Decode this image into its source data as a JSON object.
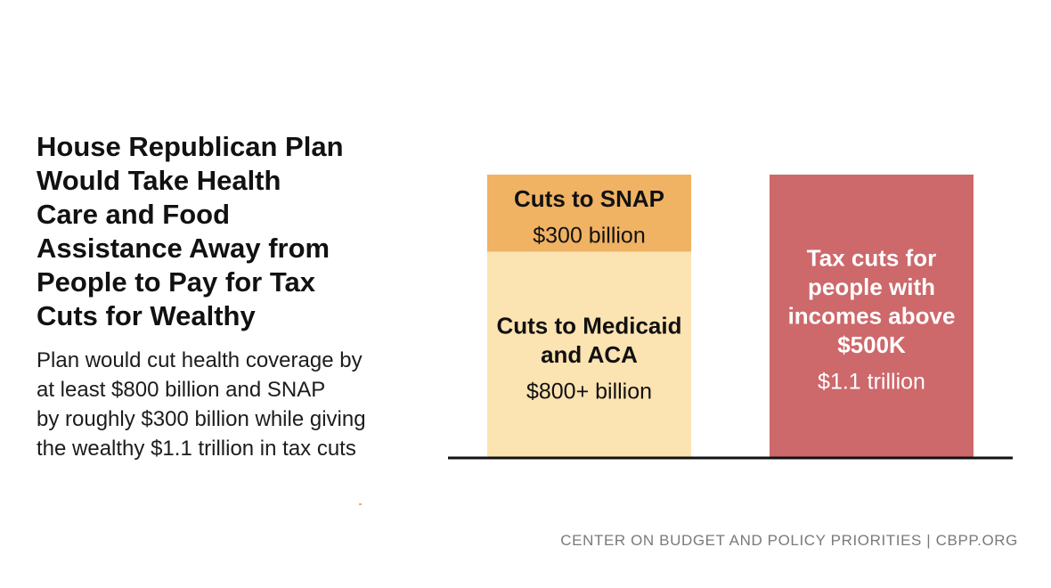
{
  "title_lines": [
    "House Republican Plan",
    "Would Take Health",
    "Care and Food",
    "Assistance Away from",
    "People to Pay for Tax",
    "Cuts for Wealthy"
  ],
  "subtitle_lines": [
    "Plan would cut health coverage by",
    "at least $800 billion and SNAP",
    "by roughly $300 billion while giving",
    "the wealthy $1.1 trillion in tax cuts"
  ],
  "footer": "CENTER ON BUDGET AND POLICY PRIORITIES | CBPP.ORG",
  "chart_data": {
    "type": "bar",
    "stacked": true,
    "unit": "billion $",
    "ylim": [
      0,
      1100
    ],
    "bars": [
      {
        "segments": [
          {
            "label": [
              "Cuts to Medicaid",
              "and ACA"
            ],
            "value_label": "$800+ billion",
            "value": 800,
            "color": "#fce3b2"
          },
          {
            "label": [
              "Cuts to SNAP"
            ],
            "value_label": "$300 billion",
            "value": 300,
            "color": "#f0b263"
          }
        ]
      },
      {
        "segments": [
          {
            "label": [
              "Tax cuts for",
              "people with",
              "incomes above",
              "$500K"
            ],
            "value_label": "$1.1 trillion",
            "value": 1100,
            "color": "#cd686b"
          }
        ]
      }
    ],
    "text_colors": {
      "light": "#111111",
      "dark": "#ffffff"
    },
    "baseline_color": "#111111"
  }
}
